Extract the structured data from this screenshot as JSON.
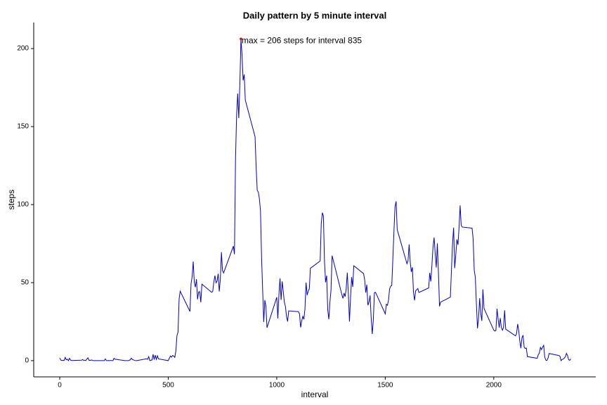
{
  "chart_data": {
    "type": "line",
    "title": "Daily pattern by 5 minute interval",
    "x_label": "interval",
    "y_label": "steps",
    "annotation": "max =  206 steps for interval 835",
    "max_point": {
      "x": 835,
      "y": 206.2,
      "color": "#e00000"
    },
    "xlim": [
      -120,
      2470
    ],
    "xticks": [
      0,
      500,
      1000,
      1500,
      2000
    ],
    "ylim": [
      -10.4,
      216.7
    ],
    "yticks": [
      0,
      50,
      100,
      150,
      200
    ],
    "grid": false,
    "x": [
      0,
      5,
      10,
      15,
      20,
      25,
      30,
      35,
      40,
      45,
      50,
      55,
      100,
      105,
      110,
      115,
      120,
      125,
      130,
      135,
      140,
      145,
      150,
      155,
      200,
      205,
      210,
      215,
      220,
      225,
      230,
      235,
      240,
      245,
      250,
      255,
      300,
      305,
      310,
      315,
      320,
      325,
      330,
      335,
      340,
      345,
      350,
      355,
      400,
      405,
      410,
      415,
      420,
      425,
      430,
      435,
      440,
      445,
      450,
      455,
      500,
      505,
      510,
      515,
      520,
      525,
      530,
      535,
      540,
      545,
      550,
      555,
      600,
      605,
      610,
      615,
      620,
      625,
      630,
      635,
      640,
      645,
      650,
      655,
      700,
      705,
      710,
      715,
      720,
      725,
      730,
      735,
      740,
      745,
      750,
      755,
      800,
      805,
      810,
      815,
      820,
      825,
      830,
      835,
      840,
      845,
      850,
      855,
      900,
      905,
      910,
      915,
      920,
      925,
      930,
      935,
      940,
      945,
      950,
      955,
      1000,
      1005,
      1010,
      1015,
      1020,
      1025,
      1030,
      1035,
      1040,
      1045,
      1050,
      1055,
      1100,
      1105,
      1110,
      1115,
      1120,
      1125,
      1130,
      1135,
      1140,
      1145,
      1150,
      1155,
      1200,
      1205,
      1210,
      1215,
      1220,
      1225,
      1230,
      1235,
      1240,
      1245,
      1250,
      1255,
      1300,
      1305,
      1310,
      1315,
      1320,
      1325,
      1330,
      1335,
      1340,
      1345,
      1350,
      1355,
      1400,
      1405,
      1410,
      1415,
      1420,
      1425,
      1430,
      1435,
      1440,
      1445,
      1450,
      1455,
      1500,
      1505,
      1510,
      1515,
      1520,
      1525,
      1530,
      1535,
      1540,
      1545,
      1550,
      1555,
      1600,
      1605,
      1610,
      1615,
      1620,
      1625,
      1630,
      1635,
      1640,
      1645,
      1650,
      1655,
      1700,
      1705,
      1710,
      1715,
      1720,
      1725,
      1730,
      1735,
      1740,
      1745,
      1750,
      1755,
      1800,
      1805,
      1810,
      1815,
      1820,
      1825,
      1830,
      1835,
      1840,
      1845,
      1850,
      1855,
      1900,
      1905,
      1910,
      1915,
      1920,
      1925,
      1930,
      1935,
      1940,
      1945,
      1950,
      1955,
      2000,
      2005,
      2010,
      2015,
      2020,
      2025,
      2030,
      2035,
      2040,
      2045,
      2050,
      2055,
      2100,
      2105,
      2110,
      2115,
      2120,
      2125,
      2130,
      2135,
      2140,
      2145,
      2150,
      2155,
      2200,
      2205,
      2210,
      2215,
      2220,
      2225,
      2230,
      2235,
      2240,
      2245,
      2250,
      2255,
      2300,
      2305,
      2310,
      2315,
      2320,
      2325,
      2330,
      2335,
      2340,
      2345,
      2350,
      2355
    ],
    "series": [
      {
        "name": "steps",
        "color": "#0000cc",
        "values": [
          1.7,
          0.3,
          0.1,
          0.2,
          0.1,
          2.1,
          0.5,
          0.9,
          0,
          1.5,
          0.3,
          0.1,
          0.3,
          0.7,
          0.2,
          0.3,
          0,
          1.1,
          1.8,
          0.2,
          0.2,
          0.4,
          0.3,
          0,
          0,
          0,
          1.1,
          0,
          0,
          0.1,
          0,
          0.2,
          0,
          0,
          1.5,
          0.9,
          0,
          0,
          0,
          0,
          0.2,
          0.6,
          1.6,
          0.6,
          0.5,
          0.1,
          0,
          0,
          1.2,
          0.9,
          2.6,
          0,
          0.3,
          0.4,
          4.1,
          0.7,
          3.5,
          0.8,
          3.1,
          1.1,
          0,
          1.6,
          3,
          2.2,
          3.3,
          3,
          2.1,
          6.1,
          16,
          18.3,
          39.5,
          44.5,
          31.5,
          49.3,
          53.8,
          63.5,
          50,
          47.1,
          52.2,
          39.3,
          44,
          44.2,
          37.4,
          49,
          43.8,
          44.4,
          50.5,
          54.5,
          49.9,
          51,
          55.7,
          44.3,
          52.3,
          69.5,
          57.8,
          56.2,
          73.4,
          68.2,
          129.4,
          157.5,
          171.2,
          155.4,
          177.3,
          206.2,
          195.9,
          179.6,
          183.4,
          167,
          143.5,
          124,
          109.1,
          108.1,
          103.7,
          96,
          66.2,
          45.2,
          24.8,
          38.8,
          35,
          21.1,
          40.6,
          27,
          42.4,
          52.7,
          38.9,
          50.8,
          44.3,
          37.4,
          34.7,
          28.3,
          25.1,
          31.9,
          31.4,
          29.7,
          21.3,
          25.5,
          28.4,
          26.5,
          33.4,
          50,
          42,
          44.6,
          46,
          59.2,
          63.9,
          87.7,
          94.8,
          92.8,
          63.4,
          50.2,
          54.5,
          32.4,
          26.5,
          37.7,
          45.1,
          67.3,
          42.3,
          39.9,
          43.3,
          41,
          46.2,
          56.4,
          42.8,
          25.1,
          40,
          53.5,
          47.3,
          60.8,
          55.8,
          52,
          43.6,
          48.7,
          35.5,
          37.5,
          41.8,
          27.5,
          17.1,
          26.1,
          43.6,
          43.8,
          30,
          36.1,
          35.5,
          38.8,
          46,
          47.8,
          48.1,
          65.3,
          82.9,
          98.7,
          102.1,
          84,
          62.1,
          64.1,
          74.5,
          63.2,
          56.9,
          59.8,
          43.9,
          38.6,
          44.7,
          45.5,
          46.2,
          43.7,
          46.6,
          56.3,
          50.7,
          61.2,
          72.7,
          78.9,
          68.9,
          59.7,
          75.1,
          56.5,
          34.8,
          37.5,
          40.7,
          58,
          74.7,
          85.3,
          59.3,
          67.8,
          77.7,
          74.2,
          85.3,
          99.5,
          86.6,
          85.6,
          84.9,
          77.8,
          58,
          53.4,
          36.3,
          20.7,
          27.4,
          40,
          30.2,
          25.5,
          45.7,
          33.5,
          19.6,
          19,
          19.3,
          33.3,
          26.8,
          21.2,
          27.3,
          21.3,
          19.5,
          21.3,
          32.3,
          20.2,
          15.9,
          17.2,
          23.5,
          19.2,
          12.5,
          8,
          14.7,
          16.3,
          8.7,
          7.8,
          8.1,
          2.6,
          1.5,
          3.7,
          4.8,
          8.5,
          7.1,
          8.7,
          9.8,
          2.2,
          0.3,
          0.1,
          1.6,
          4.6,
          3.3,
          2.8,
          0,
          0.8,
          1,
          1.6,
          2.6,
          4.7,
          3.3,
          0.6,
          0.2,
          1.1
        ]
      }
    ]
  }
}
